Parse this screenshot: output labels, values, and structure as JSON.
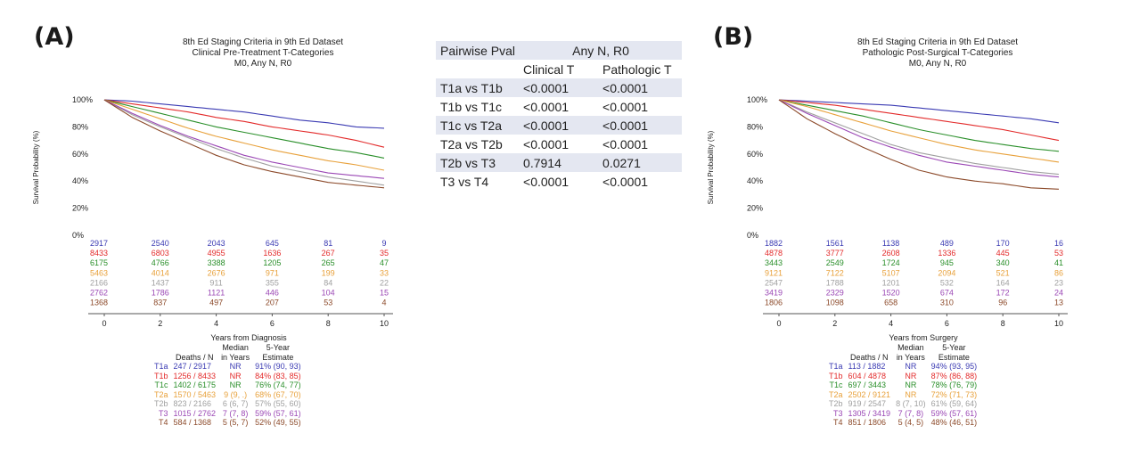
{
  "panels": [
    {
      "letter": "(A)",
      "title": [
        "8th Ed Staging Criteria in 9th Ed Dataset",
        "Clinical Pre-Treatment T-Categories",
        "M0, Any N, R0"
      ],
      "xlabel": "Years from Diagnosis",
      "stats_headers": {
        "deaths": "Deaths / N",
        "median1": "Median",
        "median2": "in Years",
        "est1": "5-Year",
        "est2": "Estimate"
      },
      "stats": [
        {
          "label": "T1a",
          "deaths": "247 / 2917",
          "median": "NR",
          "estimate": "91% (90, 93)"
        },
        {
          "label": "T1b",
          "deaths": "1256 / 8433",
          "median": "NR",
          "estimate": "84% (83, 85)"
        },
        {
          "label": "T1c",
          "deaths": "1402 / 6175",
          "median": "NR",
          "estimate": "76% (74, 77)"
        },
        {
          "label": "T2a",
          "deaths": "1570 / 5463",
          "median": "9 (9, .)",
          "estimate": "68% (67, 70)"
        },
        {
          "label": "T2b",
          "deaths": "823 / 2166",
          "median": "6 (6, 7)",
          "estimate": "57% (55, 60)"
        },
        {
          "label": "T3",
          "deaths": "1015 / 2762",
          "median": "7 (7, 8)",
          "estimate": "59% (57, 61)"
        },
        {
          "label": "T4",
          "deaths": "584 / 1368",
          "median": "5 (5, 7)",
          "estimate": "52% (49, 55)"
        }
      ],
      "at_risk": [
        [
          "2917",
          "2540",
          "2043",
          "645",
          "81",
          "9"
        ],
        [
          "8433",
          "6803",
          "4955",
          "1636",
          "267",
          "35"
        ],
        [
          "6175",
          "4766",
          "3388",
          "1205",
          "265",
          "47"
        ],
        [
          "5463",
          "4014",
          "2676",
          "971",
          "199",
          "33"
        ],
        [
          "2166",
          "1437",
          "911",
          "355",
          "84",
          "22"
        ],
        [
          "2762",
          "1786",
          "1121",
          "446",
          "104",
          "15"
        ],
        [
          "1368",
          "837",
          "497",
          "207",
          "53",
          "4"
        ]
      ]
    },
    {
      "letter": "(B)",
      "title": [
        "8th Ed Staging Criteria in 9th Ed Dataset",
        "Pathologic Post-Surgical T-Categories",
        "M0, Any N, R0"
      ],
      "xlabel": "Years from Surgery",
      "stats_headers": {
        "deaths": "Deaths / N",
        "median1": "Median",
        "median2": "in Years",
        "est1": "5-Year",
        "est2": "Estimate"
      },
      "stats": [
        {
          "label": "T1a",
          "deaths": "113 / 1882",
          "median": "NR",
          "estimate": "94% (93, 95)"
        },
        {
          "label": "T1b",
          "deaths": "604 / 4878",
          "median": "NR",
          "estimate": "87% (86, 88)"
        },
        {
          "label": "T1c",
          "deaths": "697 / 3443",
          "median": "NR",
          "estimate": "78% (76, 79)"
        },
        {
          "label": "T2a",
          "deaths": "2502 / 9121",
          "median": "NR",
          "estimate": "72% (71, 73)"
        },
        {
          "label": "T2b",
          "deaths": "919 / 2547",
          "median": "8 (7, 10)",
          "estimate": "61% (59, 64)"
        },
        {
          "label": "T3",
          "deaths": "1305 / 3419",
          "median": "7 (7, 8)",
          "estimate": "59% (57, 61)"
        },
        {
          "label": "T4",
          "deaths": "851 / 1806",
          "median": "5 (4, 5)",
          "estimate": "48% (46, 51)"
        }
      ],
      "at_risk": [
        [
          "1882",
          "1561",
          "1138",
          "489",
          "170",
          "16"
        ],
        [
          "4878",
          "3777",
          "2608",
          "1336",
          "445",
          "53"
        ],
        [
          "3443",
          "2549",
          "1724",
          "945",
          "340",
          "41"
        ],
        [
          "9121",
          "7122",
          "5107",
          "2094",
          "521",
          "86"
        ],
        [
          "2547",
          "1788",
          "1201",
          "532",
          "164",
          "23"
        ],
        [
          "3419",
          "2329",
          "1520",
          "674",
          "172",
          "24"
        ],
        [
          "1806",
          "1098",
          "658",
          "310",
          "96",
          "13"
        ]
      ]
    }
  ],
  "chart_data": [
    {
      "type": "line",
      "title": "8th Ed Staging Criteria in 9th Ed Dataset / Clinical Pre-Treatment T-Categories / M0, Any N, R0",
      "xlabel": "Years from Diagnosis",
      "ylabel": "Survival Probability (%)",
      "xlim": [
        0,
        10
      ],
      "ylim": [
        0,
        100
      ],
      "xticks": [
        "0",
        "2",
        "4",
        "6",
        "8",
        "10"
      ],
      "yticks": [
        "0%",
        "20%",
        "40%",
        "60%",
        "80%",
        "100%"
      ],
      "x": [
        0,
        1,
        2,
        3,
        4,
        5,
        6,
        7,
        8,
        9,
        10
      ],
      "series": [
        {
          "name": "T1a",
          "color": "#3b3bb3",
          "values": [
            100,
            99,
            97,
            95,
            93,
            91,
            88,
            85,
            83,
            80,
            79
          ]
        },
        {
          "name": "T1b",
          "color": "#e32b2b",
          "values": [
            100,
            97,
            94,
            91,
            87,
            84,
            80,
            77,
            74,
            70,
            65
          ]
        },
        {
          "name": "T1c",
          "color": "#2a8f2a",
          "values": [
            100,
            95,
            90,
            85,
            80,
            76,
            72,
            68,
            64,
            61,
            57
          ]
        },
        {
          "name": "T2a",
          "color": "#e8a13b",
          "values": [
            100,
            93,
            86,
            79,
            73,
            68,
            63,
            59,
            55,
            52,
            48
          ]
        },
        {
          "name": "T2b",
          "color": "#a0a0a0",
          "values": [
            100,
            89,
            80,
            72,
            64,
            57,
            51,
            47,
            43,
            40,
            37
          ]
        },
        {
          "name": "T3",
          "color": "#9b48b5",
          "values": [
            100,
            90,
            81,
            73,
            66,
            59,
            54,
            50,
            46,
            44,
            42
          ]
        },
        {
          "name": "T4",
          "color": "#8c4a2a",
          "values": [
            100,
            87,
            77,
            68,
            59,
            52,
            47,
            43,
            39,
            37,
            35
          ]
        }
      ]
    },
    {
      "type": "line",
      "title": "8th Ed Staging Criteria in 9th Ed Dataset / Pathologic Post-Surgical T-Categories / M0, Any N, R0",
      "xlabel": "Years from Surgery",
      "ylabel": "Survival Probability (%)",
      "xlim": [
        0,
        10
      ],
      "ylim": [
        0,
        100
      ],
      "xticks": [
        "0",
        "2",
        "4",
        "6",
        "8",
        "10"
      ],
      "yticks": [
        "0%",
        "20%",
        "40%",
        "60%",
        "80%",
        "100%"
      ],
      "x": [
        0,
        1,
        2,
        3,
        4,
        5,
        6,
        7,
        8,
        9,
        10
      ],
      "series": [
        {
          "name": "T1a",
          "color": "#3b3bb3",
          "values": [
            100,
            99,
            98,
            97,
            96,
            94,
            92,
            90,
            88,
            86,
            83
          ]
        },
        {
          "name": "T1b",
          "color": "#e32b2b",
          "values": [
            100,
            98,
            96,
            93,
            90,
            87,
            84,
            81,
            78,
            74,
            70
          ]
        },
        {
          "name": "T1c",
          "color": "#2a8f2a",
          "values": [
            100,
            96,
            92,
            88,
            83,
            78,
            74,
            70,
            67,
            64,
            62
          ]
        },
        {
          "name": "T2a",
          "color": "#e8a13b",
          "values": [
            100,
            95,
            89,
            83,
            77,
            72,
            67,
            63,
            60,
            57,
            54
          ]
        },
        {
          "name": "T2b",
          "color": "#a0a0a0",
          "values": [
            100,
            91,
            83,
            75,
            67,
            61,
            57,
            53,
            50,
            47,
            45
          ]
        },
        {
          "name": "T3",
          "color": "#9b48b5",
          "values": [
            100,
            90,
            81,
            72,
            65,
            59,
            54,
            51,
            48,
            45,
            43
          ]
        },
        {
          "name": "T4",
          "color": "#8c4a2a",
          "values": [
            100,
            86,
            75,
            65,
            56,
            48,
            43,
            40,
            38,
            35,
            34
          ]
        }
      ]
    }
  ],
  "pvalue_table": {
    "header": "Pairwise Pval",
    "group": "Any N, R0",
    "col1": "Clinical T",
    "col2": "Pathologic T",
    "rows": [
      {
        "label": "T1a vs T1b",
        "clinical": "<0.0001",
        "pathologic": "<0.0001"
      },
      {
        "label": "T1b vs T1c",
        "clinical": "<0.0001",
        "pathologic": "<0.0001"
      },
      {
        "label": "T1c vs T2a",
        "clinical": "<0.0001",
        "pathologic": "<0.0001"
      },
      {
        "label": "T2a vs T2b",
        "clinical": "<0.0001",
        "pathologic": "<0.0001"
      },
      {
        "label": "T2b vs T3",
        "clinical": "0.7914",
        "pathologic": "0.0271"
      },
      {
        "label": "T3 vs T4",
        "clinical": "<0.0001",
        "pathologic": "<0.0001"
      }
    ]
  }
}
